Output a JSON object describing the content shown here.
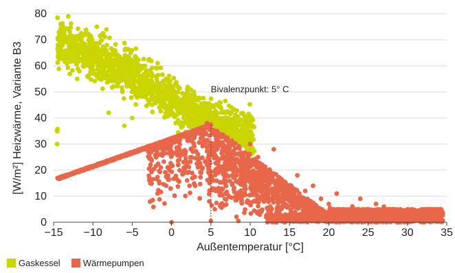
{
  "chart_data": {
    "type": "scatter",
    "title": "",
    "xlabel": "Außentemperatur [°C]",
    "ylabel": "[W/m²] Heizwärme, Variante B3",
    "xlim": [
      -15,
      35
    ],
    "ylim": [
      0,
      80
    ],
    "xticks": [
      "−15",
      "−10",
      "−5",
      "0",
      "5",
      "10",
      "15",
      "20",
      "25",
      "30",
      "35"
    ],
    "yticks": [
      "0",
      "10",
      "20",
      "30",
      "40",
      "50",
      "60",
      "70",
      "80"
    ],
    "grid": "horizontal",
    "legend_position": "bottom-left",
    "annotations": [
      {
        "text": "Bivalenzpunkt: 5° C",
        "x": 5,
        "y": 53
      }
    ],
    "reference_lines": [
      {
        "type": "vertical-dotted",
        "x": 5,
        "y_from": 0,
        "y_to": 37.5
      }
    ],
    "series": [
      {
        "name": "Gaskessel",
        "color": "#c9d400",
        "trend": {
          "description": "dense band decreasing linearly with temperature",
          "points": [
            [
              -14.5,
              69
            ],
            [
              -10,
              64
            ],
            [
              -5,
              57
            ],
            [
              0,
              47
            ],
            [
              5,
              38
            ],
            [
              10,
              33
            ]
          ]
        },
        "samples": [
          [
            -14.5,
            78.5
          ],
          [
            -13.5,
            74
          ],
          [
            -9.5,
            75
          ],
          [
            -11,
            72
          ],
          [
            -14,
            68
          ],
          [
            -13,
            66
          ],
          [
            -12,
            65
          ],
          [
            -10.5,
            61
          ],
          [
            -9,
            63
          ],
          [
            -7.5,
            59
          ],
          [
            -6,
            60
          ],
          [
            -5,
            62
          ],
          [
            -4,
            56
          ],
          [
            -3,
            54
          ],
          [
            -2.5,
            57
          ],
          [
            -1,
            52
          ],
          [
            0,
            49
          ],
          [
            0.5,
            53
          ],
          [
            1.5,
            46
          ],
          [
            2.5,
            44
          ],
          [
            3.5,
            42
          ],
          [
            4.5,
            40
          ],
          [
            5.5,
            40
          ],
          [
            6.5,
            39
          ],
          [
            7.5,
            37
          ],
          [
            8.5,
            35
          ],
          [
            9.5,
            36
          ],
          [
            10.5,
            36.5
          ],
          [
            -8,
            42
          ],
          [
            -6,
            37
          ],
          [
            -5,
            40
          ],
          [
            -3,
            47
          ],
          [
            2,
            50
          ],
          [
            3,
            48
          ],
          [
            6,
            45
          ],
          [
            -12,
            55
          ]
        ]
      },
      {
        "name": "Wärmepumpen",
        "color": "#e8674a",
        "trend": {
          "description": "rising line to bivalence point, then decreasing cloud",
          "points": [
            [
              -14.5,
              17
            ],
            [
              -10,
              21.5
            ],
            [
              -5,
              26.5
            ],
            [
              0,
              31.5
            ],
            [
              5,
              37.5
            ],
            [
              10,
              26
            ],
            [
              15,
              12
            ],
            [
              20,
              5
            ],
            [
              25,
              3
            ],
            [
              30,
              2
            ],
            [
              35,
              1
            ]
          ]
        },
        "samples": [
          [
            0,
            0
          ],
          [
            -0.5,
            21
          ],
          [
            1,
            24
          ],
          [
            2,
            19
          ],
          [
            3,
            14
          ],
          [
            4.5,
            22
          ],
          [
            5,
            0.5
          ],
          [
            4.8,
            8
          ],
          [
            5.5,
            5
          ],
          [
            6,
            12
          ],
          [
            7,
            18
          ],
          [
            8,
            22
          ],
          [
            9,
            10
          ],
          [
            10,
            30
          ],
          [
            11,
            25
          ],
          [
            12,
            20
          ],
          [
            13,
            28
          ],
          [
            14,
            15
          ],
          [
            15,
            8
          ],
          [
            16,
            18
          ],
          [
            17,
            12
          ],
          [
            18,
            14
          ],
          [
            19,
            9
          ],
          [
            20,
            7
          ],
          [
            21,
            11
          ],
          [
            22,
            4
          ],
          [
            23,
            6
          ],
          [
            24,
            2
          ],
          [
            25,
            5
          ],
          [
            26,
            3
          ],
          [
            27,
            6
          ],
          [
            28,
            4
          ],
          [
            29,
            2
          ],
          [
            30,
            3
          ],
          [
            31,
            1
          ],
          [
            33,
            5
          ],
          [
            34,
            0.5
          ],
          [
            33,
            1.5
          ],
          [
            26,
            7
          ],
          [
            24,
            9
          ],
          [
            12.5,
            1
          ],
          [
            8.5,
            0.5
          ]
        ]
      }
    ]
  }
}
